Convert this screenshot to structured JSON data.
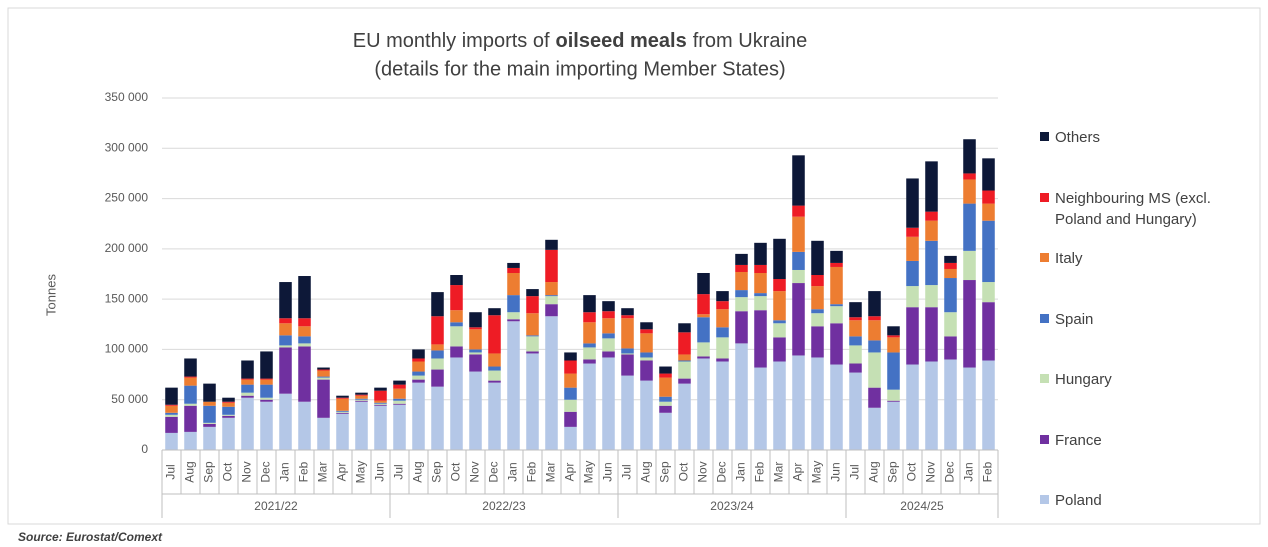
{
  "chart_data": {
    "type": "stacked_bar",
    "title": {
      "before": "EU monthly imports of",
      "bold": "oilseed meals",
      "after": "from Ukraine"
    },
    "subtitle": "(details for the main importing Member States)",
    "y_label": "Tonnes",
    "source": "Source: Eurostat/Comext",
    "groups": [
      {
        "label": "2021/22",
        "categories": [
          "Jul",
          "Aug",
          "Sep",
          "Oct",
          "Nov",
          "Dec",
          "Jan",
          "Feb",
          "Mar",
          "Apr",
          "May",
          "Jun"
        ]
      },
      {
        "label": "2022/23",
        "categories": [
          "Jul",
          "Aug",
          "Sep",
          "Oct",
          "Nov",
          "Dec",
          "Jan",
          "Feb",
          "Mar",
          "Apr",
          "May",
          "Jun"
        ]
      },
      {
        "label": "2023/24",
        "categories": [
          "Jul",
          "Aug",
          "Sep",
          "Oct",
          "Nov",
          "Dec",
          "Jan",
          "Feb",
          "Mar",
          "Apr",
          "May",
          "Jun"
        ]
      },
      {
        "label": "2024/25",
        "categories": [
          "Jul",
          "Aug",
          "Sep",
          "Oct",
          "Nov",
          "Dec",
          "Jan",
          "Feb"
        ]
      }
    ],
    "ylim": [
      0,
      350000
    ],
    "yticks": [
      0,
      {
        "value": 50000,
        "label": "50 000"
      },
      {
        "value": 100000,
        "label": "100 000"
      },
      {
        "value": 150000,
        "label": "150 000"
      },
      {
        "value": 200000,
        "label": "200 000"
      },
      {
        "value": 250000,
        "label": "250 000"
      },
      {
        "value": 300000,
        "label": "300 000"
      },
      {
        "value": 350000,
        "label": "350 000"
      }
    ],
    "grid": true,
    "legend": "right",
    "series": [
      {
        "name": "Poland",
        "color": "#b4c7e7",
        "values": [
          17000,
          18000,
          23000,
          32000,
          52000,
          48000,
          56000,
          48000,
          32000,
          36000,
          48000,
          44000,
          45000,
          67000,
          63000,
          92000,
          78000,
          67000,
          128000,
          96000,
          133000,
          23000,
          86000,
          92000,
          74000,
          69000,
          37000,
          66000,
          91000,
          88000,
          106000,
          82000,
          88000,
          94000,
          92000,
          85000,
          77000,
          42000,
          48000,
          85000,
          88000,
          90000,
          82000,
          89000
        ]
      },
      {
        "name": "France",
        "color": "#7030a0",
        "values": [
          16000,
          26000,
          3000,
          2000,
          2000,
          2000,
          46000,
          55000,
          38000,
          1000,
          1000,
          1000,
          1000,
          3000,
          17000,
          11000,
          17000,
          2000,
          2000,
          2000,
          12000,
          15000,
          4000,
          6000,
          21000,
          20000,
          7000,
          5000,
          2000,
          3000,
          32000,
          57000,
          24000,
          72000,
          31000,
          41000,
          9000,
          20000,
          1000,
          57000,
          54000,
          23000,
          87000,
          58000
        ]
      },
      {
        "name": "Hungary",
        "color": "#c5e0b4",
        "values": [
          2000,
          2000,
          1000,
          1000,
          3000,
          2000,
          2000,
          3000,
          2000,
          1000,
          1000,
          1000,
          3000,
          4000,
          11000,
          20000,
          2000,
          10000,
          7000,
          15000,
          8000,
          12000,
          12000,
          13000,
          1000,
          3000,
          4000,
          17000,
          14000,
          21000,
          14000,
          14000,
          14000,
          13000,
          13000,
          17000,
          18000,
          35000,
          11000,
          21000,
          22000,
          24000,
          29000,
          20000
        ]
      },
      {
        "name": "Spain",
        "color": "#4472c4",
        "values": [
          2000,
          18000,
          17000,
          8000,
          8000,
          13000,
          10000,
          7000,
          1000,
          1000,
          1000,
          1000,
          2000,
          4000,
          8000,
          4000,
          3000,
          4000,
          17000,
          1000,
          1000,
          12000,
          4000,
          5000,
          5000,
          5000,
          5000,
          1000,
          25000,
          10000,
          7000,
          3000,
          3000,
          18000,
          4000,
          2000,
          9000,
          12000,
          37000,
          25000,
          44000,
          34000,
          47000,
          61000
        ]
      },
      {
        "name": "Italy",
        "color": "#ed7d31",
        "values": [
          7000,
          8000,
          4000,
          4000,
          5000,
          5000,
          12000,
          10000,
          6000,
          12000,
          3000,
          2000,
          10000,
          10000,
          6000,
          12000,
          20000,
          13000,
          22000,
          22000,
          13000,
          14000,
          21000,
          15000,
          30000,
          19000,
          19000,
          6000,
          3000,
          18000,
          18000,
          20000,
          29000,
          35000,
          23000,
          37000,
          16000,
          20000,
          15000,
          24000,
          20000,
          9000,
          24000,
          17000
        ]
      },
      {
        "name": "Neighbouring MS (excl. Poland and Hungary)",
        "color": "#ee1c25",
        "values": [
          1000,
          1000,
          0,
          1000,
          1000,
          1000,
          5000,
          8000,
          1000,
          1000,
          1000,
          10000,
          4000,
          3000,
          28000,
          25000,
          2000,
          38000,
          5000,
          17000,
          32000,
          13000,
          10000,
          7000,
          3000,
          4000,
          4000,
          22000,
          20000,
          8000,
          7000,
          8000,
          12000,
          11000,
          11000,
          4000,
          3000,
          4000,
          2000,
          9000,
          9000,
          6000,
          6000,
          13000
        ]
      },
      {
        "name": "Others",
        "color": "#0d1838",
        "values": [
          17000,
          18000,
          18000,
          4000,
          18000,
          27000,
          36000,
          42000,
          2000,
          2000,
          2000,
          3000,
          4000,
          9000,
          24000,
          10000,
          15000,
          7000,
          5000,
          7000,
          10000,
          8000,
          17000,
          10000,
          7000,
          7000,
          7000,
          9000,
          21000,
          10000,
          11000,
          22000,
          40000,
          50000,
          34000,
          12000,
          15000,
          25000,
          9000,
          49000,
          50000,
          7000,
          34000,
          32000
        ]
      }
    ]
  }
}
